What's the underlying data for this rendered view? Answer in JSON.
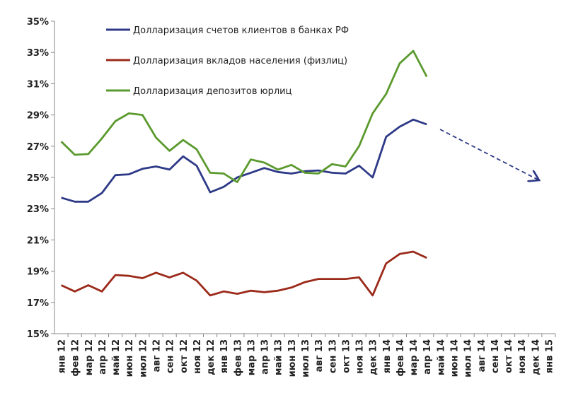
{
  "chart_data": {
    "type": "line",
    "categories": [
      "янв 12",
      "фев 12",
      "мар 12",
      "апр 12",
      "май 12",
      "июн 12",
      "июл 12",
      "авг 12",
      "сен 12",
      "окт 12",
      "ноя 12",
      "дек 12",
      "янв 13",
      "фев 13",
      "мар 13",
      "апр 13",
      "май 13",
      "июн 13",
      "июл 13",
      "авг 13",
      "сен 13",
      "окт 13",
      "ноя 13",
      "дек 13",
      "янв 14",
      "фев 14",
      "мар 14",
      "апр 14",
      "май 14",
      "июн 14",
      "июл 14",
      "авг 14",
      "сен 14",
      "окт 14",
      "ноя 14",
      "дек 14",
      "янв 15"
    ],
    "series": [
      {
        "name": "Долларизация счетов клиентов в банках РФ",
        "color": "#2e3a87",
        "values": [
          23.7,
          23.45,
          23.45,
          24.0,
          25.15,
          25.2,
          25.55,
          25.7,
          25.5,
          26.35,
          25.75,
          24.05,
          24.4,
          25.0,
          25.3,
          25.6,
          25.35,
          25.25,
          25.4,
          25.45,
          25.3,
          25.25,
          25.75,
          25.0,
          27.6,
          28.25,
          28.7,
          28.4,
          null,
          null,
          null,
          null,
          null,
          null,
          null,
          null,
          null
        ]
      },
      {
        "name": "Долларизация вкладов населения (физлиц)",
        "color": "#9b2a1a",
        "values": [
          18.1,
          17.7,
          18.1,
          17.7,
          18.75,
          18.7,
          18.55,
          18.9,
          18.6,
          18.9,
          18.4,
          17.45,
          17.7,
          17.55,
          17.75,
          17.65,
          17.75,
          17.95,
          18.3,
          18.5,
          18.5,
          18.5,
          18.6,
          17.45,
          19.5,
          20.1,
          20.25,
          19.85,
          null,
          null,
          null,
          null,
          null,
          null,
          null,
          null,
          null
        ]
      },
      {
        "name": "Долларизация депозитов юрлиц",
        "color": "#5b9a2e",
        "values": [
          27.3,
          26.45,
          26.5,
          27.5,
          28.6,
          29.1,
          29.0,
          27.55,
          26.7,
          27.4,
          26.8,
          25.3,
          25.25,
          24.7,
          26.15,
          25.95,
          25.5,
          25.8,
          25.3,
          25.25,
          25.85,
          25.7,
          27.0,
          29.1,
          30.35,
          32.3,
          33.1,
          31.45,
          null,
          null,
          null,
          null,
          null,
          null,
          null,
          null,
          null
        ]
      }
    ],
    "ylim": [
      15,
      35
    ],
    "yticks": [
      {
        "value": 15,
        "label": "15%"
      },
      {
        "value": 17,
        "label": "17%"
      },
      {
        "value": 19,
        "label": "19%"
      },
      {
        "value": 21,
        "label": "21%"
      },
      {
        "value": 23,
        "label": "23%"
      },
      {
        "value": 25,
        "label": "25%"
      },
      {
        "value": 27,
        "label": "27%"
      },
      {
        "value": 29,
        "label": "29%"
      },
      {
        "value": 31,
        "label": "31%"
      },
      {
        "value": 33,
        "label": "33%"
      },
      {
        "value": 35,
        "label": "35%"
      }
    ],
    "grid": false,
    "legend": "top-left"
  }
}
